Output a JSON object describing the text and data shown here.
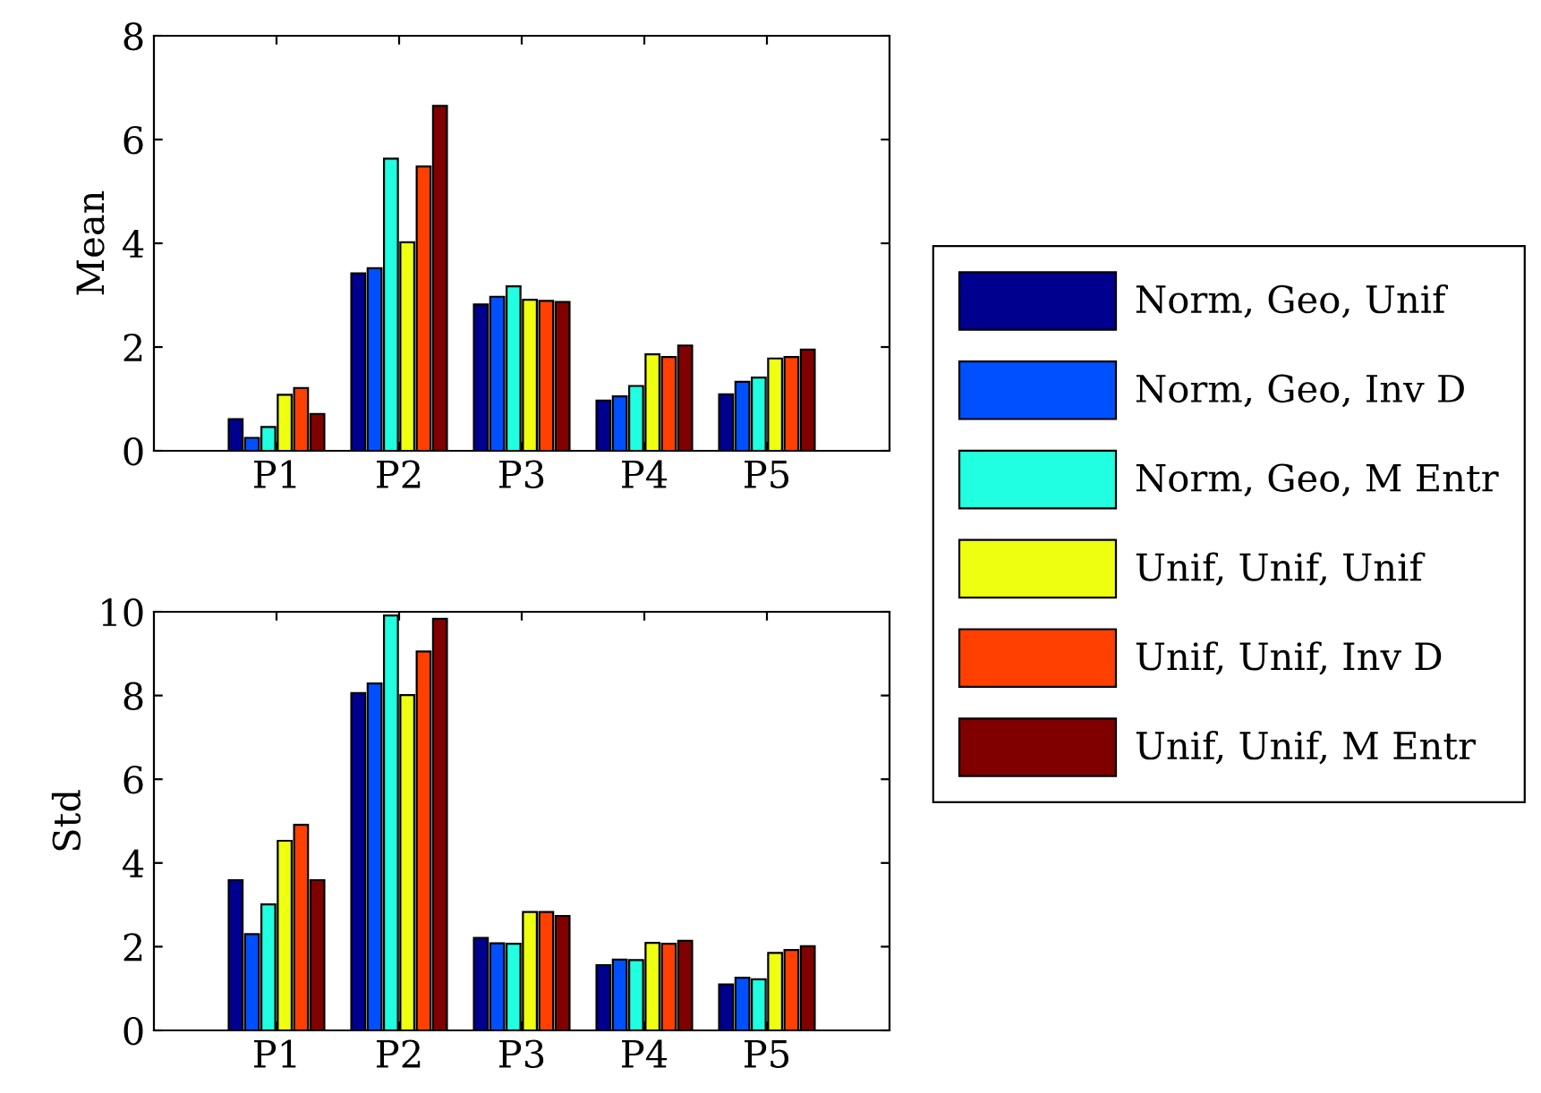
{
  "chart_data": [
    {
      "type": "bar",
      "ylabel": "Mean",
      "categories": [
        "P1",
        "P2",
        "P3",
        "P4",
        "P5"
      ],
      "ylim": [
        0,
        8
      ],
      "yticks": [
        0,
        2,
        4,
        6,
        8
      ],
      "grid": false,
      "legend": "right",
      "series": [
        {
          "name": "Norm, Geo, Unif",
          "color": "#00008f",
          "values": [
            0.61,
            3.42,
            2.82,
            0.97,
            1.09
          ]
        },
        {
          "name": "Norm, Geo, Inv D",
          "color": "#0050ff",
          "values": [
            0.25,
            3.52,
            2.97,
            1.05,
            1.33
          ]
        },
        {
          "name": "Norm, Geo, M Entr",
          "color": "#20ffdf",
          "values": [
            0.46,
            5.63,
            3.17,
            1.25,
            1.41
          ]
        },
        {
          "name": "Unif, Unif, Unif",
          "color": "#efff10",
          "values": [
            1.08,
            4.02,
            2.91,
            1.86,
            1.78
          ]
        },
        {
          "name": "Unif, Unif, Inv D",
          "color": "#ff4000",
          "values": [
            1.21,
            5.48,
            2.89,
            1.81,
            1.81
          ]
        },
        {
          "name": "Unif, Unif, M Entr",
          "color": "#800000",
          "values": [
            0.71,
            6.65,
            2.87,
            2.03,
            1.95
          ]
        }
      ]
    },
    {
      "type": "bar",
      "ylabel": "Std",
      "categories": [
        "P1",
        "P2",
        "P3",
        "P4",
        "P5"
      ],
      "ylim": [
        0,
        10
      ],
      "yticks": [
        0,
        2,
        4,
        6,
        8,
        10
      ],
      "grid": false,
      "series": [
        {
          "color": "#00008f",
          "values": [
            3.59,
            8.06,
            2.21,
            1.56,
            1.1
          ]
        },
        {
          "color": "#0050ff",
          "values": [
            2.3,
            8.29,
            2.08,
            1.69,
            1.26
          ]
        },
        {
          "color": "#20ffdf",
          "values": [
            3.01,
            9.91,
            2.07,
            1.68,
            1.22
          ]
        },
        {
          "color": "#efff10",
          "values": [
            4.53,
            8.01,
            2.83,
            2.09,
            1.85
          ]
        },
        {
          "color": "#ff4000",
          "values": [
            4.91,
            9.05,
            2.83,
            2.07,
            1.92
          ]
        },
        {
          "color": "#800000",
          "values": [
            3.59,
            9.83,
            2.73,
            2.14,
            2.01
          ]
        }
      ]
    }
  ]
}
